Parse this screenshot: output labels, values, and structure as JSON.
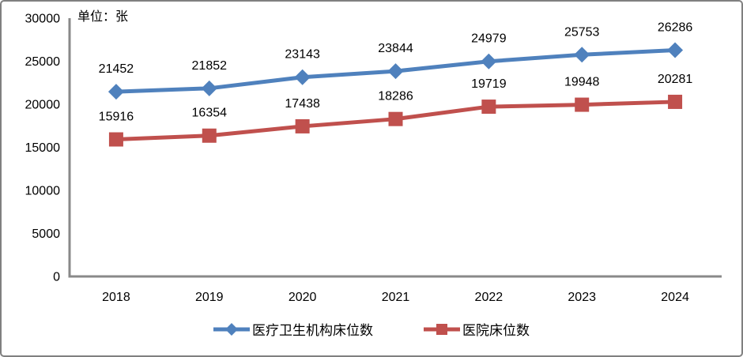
{
  "chart_data": {
    "type": "line",
    "title": "",
    "unit_label": "单位：张",
    "categories": [
      "2018",
      "2019",
      "2020",
      "2021",
      "2022",
      "2023",
      "2024"
    ],
    "series": [
      {
        "name": "医疗卫生机构床位数",
        "color": "#4F81BD",
        "marker": "diamond",
        "values": [
          21452,
          21852,
          23143,
          23844,
          24979,
          25753,
          26286
        ]
      },
      {
        "name": "医院床位数",
        "color": "#C0504D",
        "marker": "square",
        "values": [
          15916,
          16354,
          17438,
          18286,
          19719,
          19948,
          20281
        ]
      }
    ],
    "ylim": [
      0,
      30000
    ],
    "y_ticks": [
      0,
      5000,
      10000,
      15000,
      20000,
      25000,
      30000
    ],
    "xlabel": "",
    "ylabel": "",
    "grid": false,
    "legend_position": "bottom",
    "data_labels_position": "above",
    "colors": {
      "axis": "#898989",
      "text": "#000000",
      "border": "#808080",
      "background": "#FFFFFF"
    }
  }
}
